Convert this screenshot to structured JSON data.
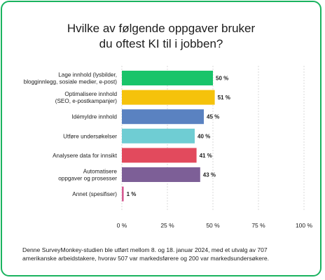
{
  "chart_data": {
    "type": "bar",
    "orientation": "horizontal",
    "title": [
      "Hvilke av følgende oppgaver bruker",
      "du oftest KI til i jobben?"
    ],
    "categories": [
      [
        "Lage innhold (lysbilder,",
        "blogginnlegg, sosiale medier, e-post)"
      ],
      [
        "Optimalisere innhold",
        "(SEO, e-postkampanjer)"
      ],
      [
        "Idémyldre innhold"
      ],
      [
        "Utføre undersøkelser"
      ],
      [
        "Analysere data for innsikt"
      ],
      [
        "Automatisere",
        "oppgaver og prosesser"
      ],
      [
        "Annet (spesifiser)"
      ]
    ],
    "values": [
      50,
      51,
      45,
      40,
      41,
      43,
      1
    ],
    "value_labels": [
      "50 %",
      "51 %",
      "45 %",
      "40 %",
      "41 %",
      "43 %",
      "1 %"
    ],
    "bar_colors": [
      "#19c46a",
      "#f5c20b",
      "#5a82c1",
      "#6fcdd3",
      "#e24a5d",
      "#7d5f97",
      "#d65a92"
    ],
    "xlim": [
      0,
      100
    ],
    "x_ticks": [
      0,
      25,
      50,
      75,
      100
    ],
    "x_tick_labels": [
      "0 %",
      "25 %",
      "50 %",
      "75 %",
      "100 %"
    ],
    "grid": "vertical dashed",
    "legend": "none"
  },
  "footnote": [
    "Denne SurveyMonkey-studien ble utført mellom 8. og 18. januar 2024, med et utvalg av 707",
    "amerikanske arbeidstakere, hvorav 507 var markedsførere og 200 var markedsundersøkere."
  ],
  "colors": {
    "border": "#19b35f",
    "grid": "#cfcfcf",
    "text": "#1c1c1c"
  }
}
